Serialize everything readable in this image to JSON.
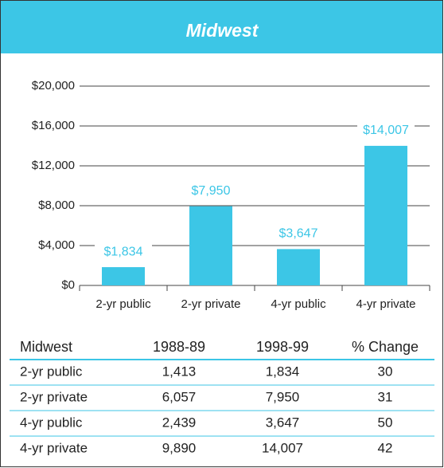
{
  "chart_data": {
    "type": "bar",
    "title": "Midwest",
    "categories": [
      "2-yr public",
      "2-yr private",
      "4-yr public",
      "4-yr private"
    ],
    "values": [
      1834,
      7950,
      3647,
      14007
    ],
    "value_labels": [
      "$1,834",
      "$7,950",
      "$3,647",
      "$14,007"
    ],
    "color": "#3cc6e6",
    "ylim": [
      0,
      20000
    ],
    "yticks": [
      {
        "value": 0,
        "label": "$0"
      },
      {
        "value": 4000,
        "label": "$4,000"
      },
      {
        "value": 8000,
        "label": "$8,000"
      },
      {
        "value": 12000,
        "label": "$12,000"
      },
      {
        "value": 16000,
        "label": "$16,000"
      },
      {
        "value": 20000,
        "label": "$20,000"
      }
    ],
    "grid": true
  },
  "table": {
    "header": [
      "Midwest",
      "1988-89",
      "1998-99",
      "% Change"
    ],
    "rows": [
      [
        "2-yr public",
        "1,413",
        "1,834",
        "30"
      ],
      [
        "2-yr private",
        "6,057",
        "7,950",
        "31"
      ],
      [
        "4-yr public",
        "2,439",
        "3,647",
        "50"
      ],
      [
        "4-yr private",
        "9,890",
        "14,007",
        "42"
      ]
    ]
  }
}
